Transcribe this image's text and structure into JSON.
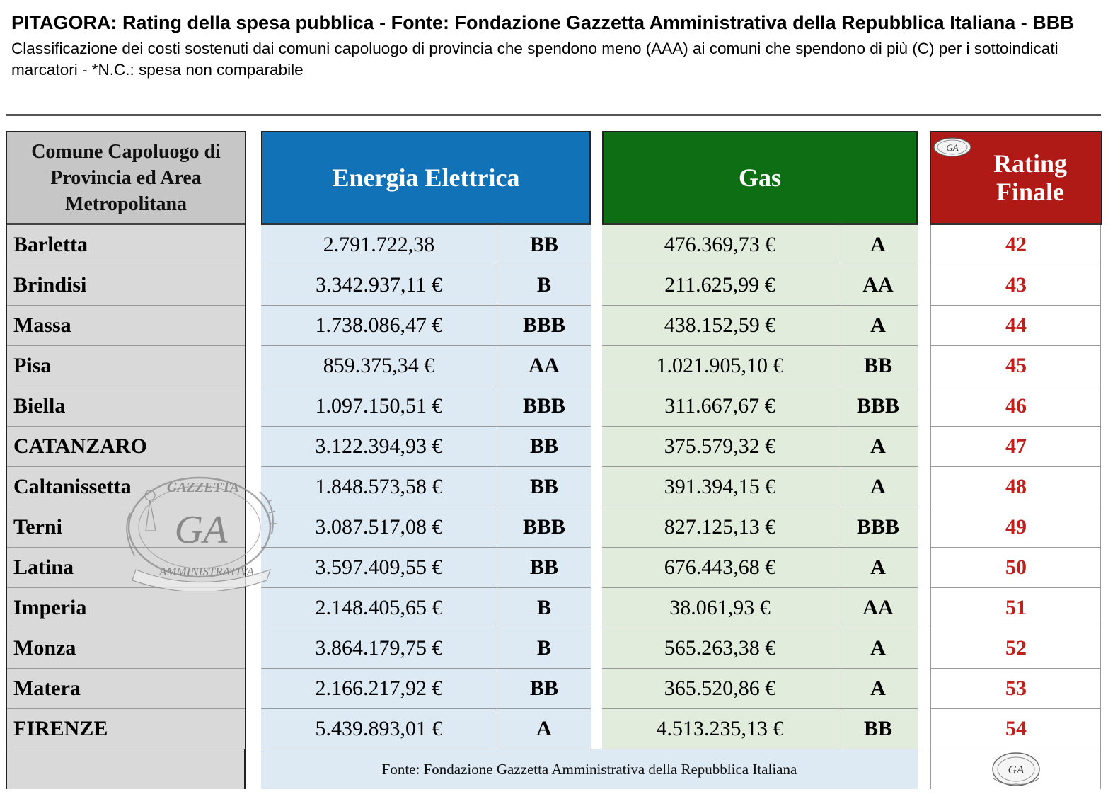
{
  "header": {
    "title": "PITAGORA: Rating della spesa pubblica - Fonte: Fondazione Gazzetta Amministrativa della Repubblica Italiana -  BBB",
    "subtitle": "Classificazione dei costi sostenuti dai comuni capoluogo di provincia che spendono meno (AAA) ai comuni che spendono di più (C) per i sottoindicati marcatori - *N.C.: spesa non comparabile"
  },
  "columns": {
    "city": "Comune Capoluogo di Provincia ed Area Metropolitana",
    "energia": "Energia Elettrica",
    "gas": "Gas",
    "rating": "Rating Finale"
  },
  "colors": {
    "energia_header": "#1172b8",
    "gas_header": "#0d6e14",
    "rating_header": "#b01a16",
    "rating_text": "#c0201c"
  },
  "rows": [
    {
      "city": "Barletta",
      "energia": "2.791.722,38",
      "energia_rating": "BB",
      "gas": "476.369,73 €",
      "gas_rating": "A",
      "rating": "42"
    },
    {
      "city": "Brindisi",
      "energia": "3.342.937,11 €",
      "energia_rating": "B",
      "gas": "211.625,99 €",
      "gas_rating": "AA",
      "rating": "43"
    },
    {
      "city": "Massa",
      "energia": "1.738.086,47 €",
      "energia_rating": "BBB",
      "gas": "438.152,59 €",
      "gas_rating": "A",
      "rating": "44"
    },
    {
      "city": "Pisa",
      "energia": "859.375,34 €",
      "energia_rating": "AA",
      "gas": "1.021.905,10 €",
      "gas_rating": "BB",
      "rating": "45"
    },
    {
      "city": "Biella",
      "energia": "1.097.150,51 €",
      "energia_rating": "BBB",
      "gas": "311.667,67 €",
      "gas_rating": "BBB",
      "rating": "46"
    },
    {
      "city": "CATANZARO",
      "energia": "3.122.394,93 €",
      "energia_rating": "BB",
      "gas": "375.579,32 €",
      "gas_rating": "A",
      "rating": "47"
    },
    {
      "city": "Caltanissetta",
      "energia": "1.848.573,58 €",
      "energia_rating": "BB",
      "gas": "391.394,15 €",
      "gas_rating": "A",
      "rating": "48"
    },
    {
      "city": "Terni",
      "energia": "3.087.517,08 €",
      "energia_rating": "BBB",
      "gas": "827.125,13 €",
      "gas_rating": "BBB",
      "rating": "49"
    },
    {
      "city": "Latina",
      "energia": "3.597.409,55 €",
      "energia_rating": "BB",
      "gas": "676.443,68 €",
      "gas_rating": "A",
      "rating": "50"
    },
    {
      "city": "Imperia",
      "energia": "2.148.405,65 €",
      "energia_rating": "B",
      "gas": "38.061,93 €",
      "gas_rating": "AA",
      "rating": "51"
    },
    {
      "city": "Monza",
      "energia": "3.864.179,75 €",
      "energia_rating": "B",
      "gas": "565.263,38 €",
      "gas_rating": "A",
      "rating": "52"
    },
    {
      "city": "Matera",
      "energia": "2.166.217,92 €",
      "energia_rating": "BB",
      "gas": "365.520,86 €",
      "gas_rating": "A",
      "rating": "53"
    },
    {
      "city": "FIRENZE",
      "energia": "5.439.893,01 €",
      "energia_rating": "A",
      "gas": "4.513.235,13 €",
      "gas_rating": "BB",
      "rating": "54"
    }
  ],
  "footer": {
    "source": "Fonte: Fondazione Gazzetta Amministrativa della Repubblica Italiana"
  },
  "logo": {
    "text": "GA",
    "watermark_top": "GAZZETTA",
    "watermark_bottom": "AMMINISTRATIVA"
  }
}
